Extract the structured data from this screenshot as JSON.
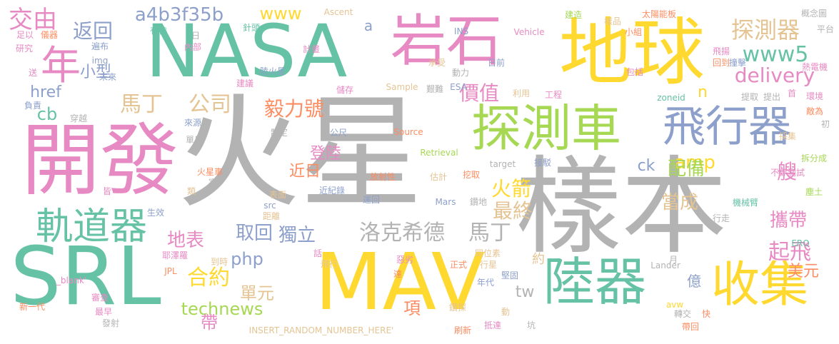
{
  "palette": {
    "gray": "#b3b3b3",
    "teal": "#66c2a5",
    "yellow": "#ffd92f",
    "pink": "#e78ac3",
    "blue": "#8da0cb",
    "green": "#a6d854",
    "tan": "#e5c494",
    "orange": "#fc8d62"
  },
  "words": [
    {
      "text": "火星",
      "color": "gray",
      "vertical": false
    },
    {
      "text": "樣本",
      "color": "gray",
      "vertical": false
    },
    {
      "text": "NASA",
      "color": "teal",
      "vertical": false
    },
    {
      "text": "開發",
      "color": "pink",
      "vertical": false
    },
    {
      "text": "MAV",
      "color": "yellow",
      "vertical": false
    },
    {
      "text": "SRL",
      "color": "teal",
      "vertical": false
    },
    {
      "text": "地球",
      "color": "yellow",
      "vertical": false
    },
    {
      "text": "岩石",
      "color": "pink",
      "vertical": false
    },
    {
      "text": "探測車",
      "color": "green",
      "vertical": false
    },
    {
      "text": "飛行器",
      "color": "blue",
      "vertical": false
    },
    {
      "text": "陸器",
      "color": "teal",
      "vertical": false
    },
    {
      "text": "收集",
      "color": "yellow",
      "vertical": false
    },
    {
      "text": "年",
      "color": "pink",
      "vertical": false
    },
    {
      "text": "軌道器",
      "color": "teal",
      "vertical": false
    },
    {
      "text": "交由",
      "color": "pink",
      "vertical": false
    },
    {
      "text": "a4b3f35b",
      "color": "blue",
      "vertical": false
    },
    {
      "text": "www",
      "color": "yellow",
      "vertical": false
    },
    {
      "text": "返回",
      "color": "blue",
      "vertical": false
    },
    {
      "text": "探測器",
      "color": "tan",
      "vertical": false
    },
    {
      "text": "www5",
      "color": "teal",
      "vertical": false
    },
    {
      "text": "delivery",
      "color": "pink",
      "vertical": false
    },
    {
      "text": "馬丁",
      "color": "tan",
      "vertical": false
    },
    {
      "text": "公司",
      "color": "tan",
      "vertical": false
    },
    {
      "text": "毅力號",
      "color": "orange",
      "vertical": false
    },
    {
      "text": "價值",
      "color": "pink",
      "vertical": false
    },
    {
      "text": "小型",
      "color": "blue",
      "vertical": false
    },
    {
      "text": "href",
      "color": "blue",
      "vertical": false
    },
    {
      "text": "cb",
      "color": "teal",
      "vertical": false
    },
    {
      "text": "amp",
      "color": "yellow",
      "vertical": false
    },
    {
      "text": "火箭",
      "color": "yellow",
      "vertical": false
    },
    {
      "text": "最終",
      "color": "tan",
      "vertical": false
    },
    {
      "text": "配備",
      "color": "green",
      "vertical": false
    },
    {
      "text": "登陸",
      "color": "pink",
      "vertical": false
    },
    {
      "text": "近日",
      "color": "orange",
      "vertical": false
    },
    {
      "text": "ck",
      "color": "blue",
      "vertical": false
    },
    {
      "text": "艘",
      "color": "pink",
      "vertical": false
    },
    {
      "text": "地表",
      "color": "pink",
      "vertical": false
    },
    {
      "text": "取回",
      "color": "blue",
      "vertical": false
    },
    {
      "text": "獨立",
      "color": "blue",
      "vertical": false
    },
    {
      "text": "洛克希德",
      "color": "gray",
      "vertical": false
    },
    {
      "text": "馬丁",
      "color": "gray",
      "vertical": false
    },
    {
      "text": "當成",
      "color": "tan",
      "vertical": false
    },
    {
      "text": "攜帶",
      "color": "pink",
      "vertical": false
    },
    {
      "text": "php",
      "color": "blue",
      "vertical": false
    },
    {
      "text": "合約",
      "color": "yellow",
      "vertical": false
    },
    {
      "text": "單元",
      "color": "tan",
      "vertical": false
    },
    {
      "text": "tw",
      "color": "gray",
      "vertical": false
    },
    {
      "text": "起飛",
      "color": "pink",
      "vertical": false
    },
    {
      "text": "美元",
      "color": "orange",
      "vertical": false
    },
    {
      "text": "technews",
      "color": "green",
      "vertical": false
    },
    {
      "text": "項",
      "color": "orange",
      "vertical": false
    },
    {
      "text": "帶",
      "color": "pink",
      "vertical": false
    },
    {
      "text": "億",
      "color": "blue",
      "vertical": false
    },
    {
      "text": "約",
      "color": "tan",
      "vertical": false
    },
    {
      "text": "n",
      "color": "yellow",
      "vertical": false
    },
    {
      "text": "a",
      "color": "blue",
      "vertical": false
    },
    {
      "text": "Ascent",
      "color": "tan",
      "vertical": false
    },
    {
      "text": "INS",
      "color": "blue",
      "vertical": false
    },
    {
      "text": "Vehicle",
      "color": "pink",
      "vertical": false
    },
    {
      "text": "建造",
      "color": "green",
      "vertical": false
    },
    {
      "text": "樣品",
      "color": "tan",
      "vertical": false
    },
    {
      "text": "太陽能板",
      "color": "orange",
      "vertical": false
    },
    {
      "text": "概念圖",
      "color": "gray",
      "vertical": false
    },
    {
      "text": "平台",
      "color": "gray",
      "vertical": false
    },
    {
      "text": "小組",
      "color": "orange",
      "vertical": false
    },
    {
      "text": "飛揚",
      "color": "pink",
      "vertical": false
    },
    {
      "text": "回到",
      "color": "orange",
      "vertical": false
    },
    {
      "text": "撞擊",
      "color": "blue",
      "vertical": false
    },
    {
      "text": "熱電機",
      "color": "pink",
      "vertical": false
    },
    {
      "text": "包括",
      "color": "pink",
      "vertical": false
    },
    {
      "text": "提取",
      "color": "gray",
      "vertical": false
    },
    {
      "text": "提出",
      "color": "gray",
      "vertical": false
    },
    {
      "text": "首",
      "color": "pink",
      "vertical": false
    },
    {
      "text": "環境",
      "color": "pink",
      "vertical": false
    },
    {
      "text": "敵為",
      "color": "orange",
      "vertical": false
    },
    {
      "text": "採集",
      "color": "tan",
      "vertical": false
    },
    {
      "text": "初",
      "color": "gray",
      "vertical": false
    },
    {
      "text": "拆分成",
      "color": "green",
      "vertical": false
    },
    {
      "text": "不停測試",
      "color": "pink",
      "vertical": false
    },
    {
      "text": "塵土",
      "color": "green",
      "vertical": false
    },
    {
      "text": "機械臂",
      "color": "teal",
      "vertical": false
    },
    {
      "text": "行走",
      "color": "gray",
      "vertical": false
    },
    {
      "text": "ERO",
      "color": "teal",
      "vertical": false
    },
    {
      "text": "月",
      "color": "gray",
      "vertical": false
    },
    {
      "text": "Lander",
      "color": "gray",
      "vertical": false
    },
    {
      "text": "轉交",
      "color": "gray",
      "vertical": false
    },
    {
      "text": "快",
      "color": "orange",
      "vertical": false
    },
    {
      "text": "帶回",
      "color": "orange",
      "vertical": false
    },
    {
      "text": "avw",
      "color": "yellow",
      "vertical": false
    },
    {
      "text": "坑",
      "color": "gray",
      "vertical": false
    },
    {
      "text": "刷新",
      "color": "orange",
      "vertical": false
    },
    {
      "text": "抵達",
      "color": "pink",
      "vertical": false
    },
    {
      "text": "鑽探",
      "color": "tan",
      "vertical": false
    },
    {
      "text": "動",
      "color": "tan",
      "vertical": false
    },
    {
      "text": "堅固",
      "color": "blue",
      "vertical": false
    },
    {
      "text": "年代",
      "color": "blue",
      "vertical": false
    },
    {
      "text": "同位素",
      "color": "tan",
      "vertical": false
    },
    {
      "text": "行星",
      "color": "tan",
      "vertical": false
    },
    {
      "text": "正式",
      "color": "orange",
      "vertical": false
    },
    {
      "text": "惡劣",
      "color": "pink",
      "vertical": false
    },
    {
      "text": "達",
      "color": "orange",
      "vertical": false
    },
    {
      "text": "飛行",
      "color": "tan",
      "vertical": false
    },
    {
      "text": "話",
      "color": "pink",
      "vertical": false
    },
    {
      "text": "Mars",
      "color": "blue",
      "vertical": false
    },
    {
      "text": "鑽地",
      "color": "gray",
      "vertical": false
    },
    {
      "text": "運回",
      "color": "blue",
      "vertical": false
    },
    {
      "text": "近紀錄",
      "color": "blue",
      "vertical": false
    },
    {
      "text": "表面",
      "color": "tan",
      "vertical": false
    },
    {
      "text": "估計",
      "color": "tan",
      "vertical": false
    },
    {
      "text": "挖取",
      "color": "orange",
      "vertical": false
    },
    {
      "text": "接駁",
      "color": "blue",
      "vertical": false
    },
    {
      "text": "target",
      "color": "gray",
      "vertical": false
    },
    {
      "text": "放射性",
      "color": "orange",
      "vertical": false
    },
    {
      "text": "Retrieval",
      "color": "green",
      "vertical": false
    },
    {
      "text": "Source",
      "color": "orange",
      "vertical": false
    },
    {
      "text": "公尺",
      "color": "blue",
      "vertical": false
    },
    {
      "text": "制定",
      "color": "gray",
      "vertical": false
    },
    {
      "text": "單日",
      "color": "gray",
      "vertical": false
    },
    {
      "text": "來源",
      "color": "blue",
      "vertical": false
    },
    {
      "text": "穿越",
      "color": "gray",
      "vertical": false
    },
    {
      "text": "負責",
      "color": "blue",
      "vertical": false
    },
    {
      "text": "送",
      "color": "pink",
      "vertical": false
    },
    {
      "text": "研究",
      "color": "pink",
      "vertical": false
    },
    {
      "text": "足以",
      "color": "pink",
      "vertical": false
    },
    {
      "text": "儀器",
      "color": "orange",
      "vertical": false
    },
    {
      "text": "遍布",
      "color": "blue",
      "vertical": false
    },
    {
      "text": "img",
      "color": "blue",
      "vertical": false
    },
    {
      "text": "未來",
      "color": "blue",
      "vertical": false
    },
    {
      "text": "有待",
      "color": "teal",
      "vertical": false
    },
    {
      "text": "日",
      "color": "gray",
      "vertical": false
    },
    {
      "text": "內部",
      "color": "pink",
      "vertical": false
    },
    {
      "text": "針頭",
      "color": "teal",
      "vertical": false
    },
    {
      "text": "計畫",
      "color": "pink",
      "vertical": false
    },
    {
      "text": "陸火星",
      "color": "blue",
      "vertical": false
    },
    {
      "text": "建議",
      "color": "pink",
      "vertical": false
    },
    {
      "text": "承受",
      "color": "tan",
      "vertical": false
    },
    {
      "text": "動力",
      "color": "gray",
      "vertical": false
    },
    {
      "text": "日前",
      "color": "blue",
      "vertical": false
    },
    {
      "text": "儲存",
      "color": "pink",
      "vertical": false
    },
    {
      "text": "Sample",
      "color": "tan",
      "vertical": false
    },
    {
      "text": "艱難",
      "color": "gray",
      "vertical": false
    },
    {
      "text": "ESA",
      "color": "blue",
      "vertical": false
    },
    {
      "text": "利用",
      "color": "tan",
      "vertical": false
    },
    {
      "text": "工程",
      "color": "pink",
      "vertical": false
    },
    {
      "text": "zoneid",
      "color": "teal",
      "vertical": false
    },
    {
      "text": "火星車",
      "color": "orange",
      "vertical": false
    },
    {
      "text": "塞",
      "color": "gray",
      "vertical": false
    },
    {
      "text": "皆",
      "color": "pink",
      "vertical": false
    },
    {
      "text": "類",
      "color": "tan",
      "vertical": false
    },
    {
      "text": "src",
      "color": "blue",
      "vertical": false
    },
    {
      "text": "距離",
      "color": "tan",
      "vertical": false
    },
    {
      "text": "生效",
      "color": "blue",
      "vertical": false
    },
    {
      "text": "耶澤羅",
      "color": "pink",
      "vertical": false
    },
    {
      "text": "JPL",
      "color": "orange",
      "vertical": false
    },
    {
      "text": "到時",
      "color": "tan",
      "vertical": false
    },
    {
      "text": "_blank'",
      "color": "pink",
      "vertical": false
    },
    {
      "text": "審查",
      "color": "pink",
      "vertical": false
    },
    {
      "text": "新一代",
      "color": "orange",
      "vertical": false
    },
    {
      "text": "最早",
      "color": "pink",
      "vertical": false
    },
    {
      "text": "發射",
      "color": "gray",
      "vertical": false
    },
    {
      "text": "INSERT_RANDOM_NUMBER_HERE'",
      "color": "tan",
      "vertical": false
    }
  ]
}
